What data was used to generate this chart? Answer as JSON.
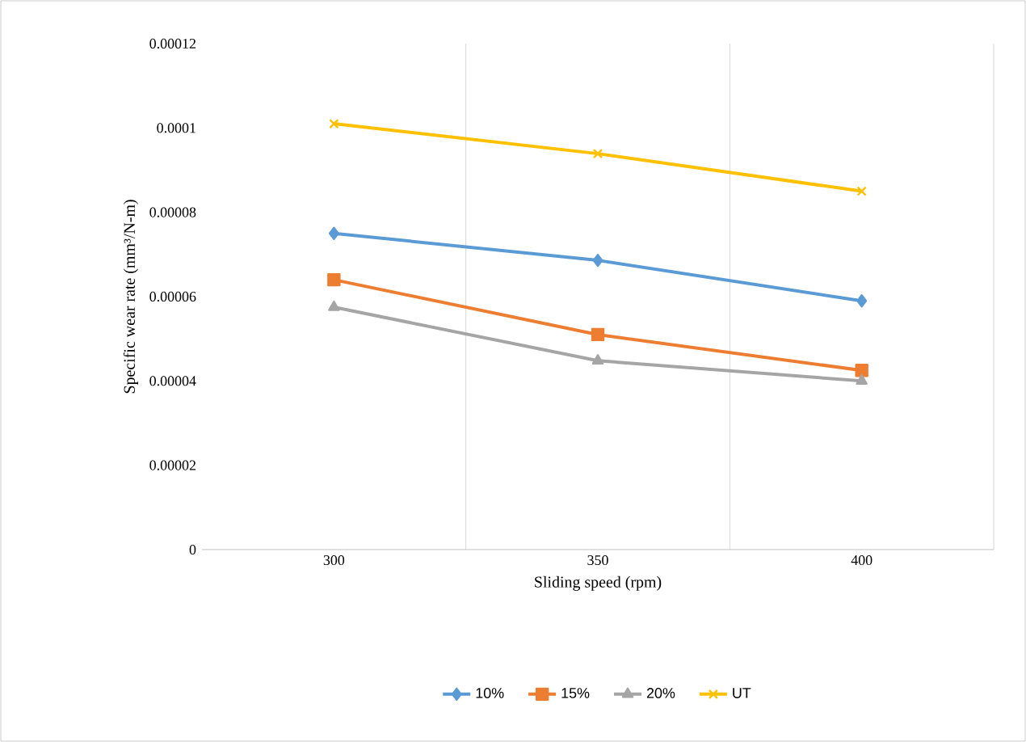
{
  "chart_data": {
    "type": "line",
    "xlabel": "Sliding speed (rpm)",
    "ylabel": "Specific wear rate (mm³/N-m)",
    "categories": [
      "300",
      "350",
      "400"
    ],
    "series": [
      {
        "name": "10%",
        "color": "#5b9bd5",
        "marker": "diamond",
        "values": [
          7.5e-05,
          6.86e-05,
          5.9e-05
        ]
      },
      {
        "name": "15%",
        "color": "#ed7d31",
        "marker": "square",
        "values": [
          6.4e-05,
          5.1e-05,
          4.25e-05
        ]
      },
      {
        "name": "20%",
        "color": "#a5a5a5",
        "marker": "triangle",
        "values": [
          5.75e-05,
          4.48e-05,
          4e-05
        ]
      },
      {
        "name": "UT",
        "color": "#ffc000",
        "marker": "cross",
        "values": [
          0.000101,
          9.39e-05,
          8.5e-05
        ]
      }
    ],
    "ylim": [
      0,
      0.00012
    ],
    "yticks": [
      0,
      {
        "value": 2e-05,
        "label": "0.00002"
      },
      {
        "value": 4e-05,
        "label": "0.00004"
      },
      {
        "value": 6e-05,
        "label": "0.00006"
      },
      {
        "value": 8e-05,
        "label": "0.00008"
      },
      {
        "value": 0.0001,
        "label": "0.0001"
      },
      {
        "value": 0.00012,
        "label": "0.00012"
      }
    ],
    "grid": "x",
    "legend": "bottom",
    "line_style": "solid"
  }
}
